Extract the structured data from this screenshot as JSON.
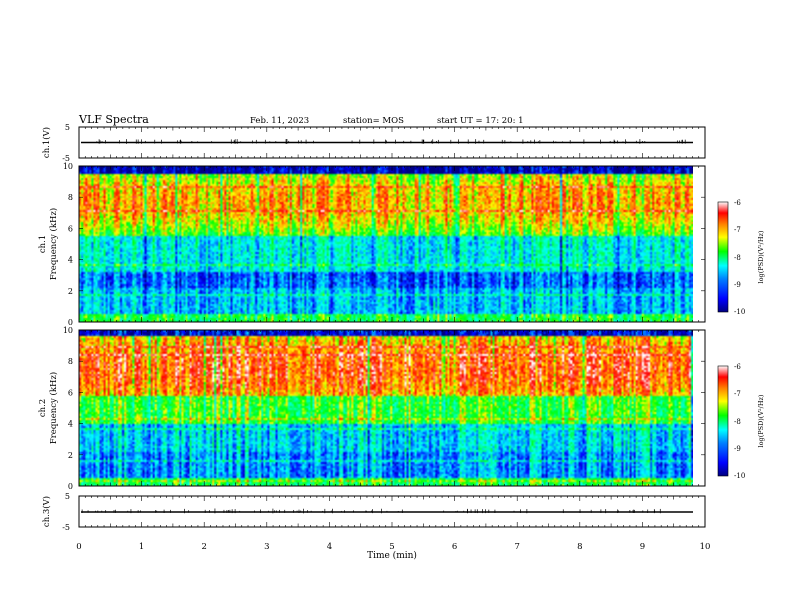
{
  "header": {
    "title": "VLF Spectra",
    "date": "Feb. 11, 2023",
    "station": "station= MOS",
    "start": "start  UT  =   17: 20: 1"
  },
  "chart_data": [
    {
      "type": "line",
      "panel": "ch1-waveform",
      "ylabel": "ch.1(V)",
      "ylim": [
        -5,
        5
      ],
      "y_ticks": [
        "5",
        "-5"
      ],
      "xlim": [
        0,
        10
      ]
    },
    {
      "type": "heatmap",
      "panel": "ch1-spectrogram",
      "ylabel": "ch.1\nFrequency (kHz)",
      "ylim": [
        0,
        10
      ],
      "y_ticks": [
        "0",
        "2",
        "4",
        "6",
        "8",
        "10"
      ],
      "xlim": [
        0,
        10
      ],
      "colorbar": {
        "label": "log(PSD)(V²/Hz)",
        "range": [
          -10,
          -6
        ],
        "ticks": [
          "-6",
          "-7",
          "-8",
          "-9",
          "-10"
        ]
      }
    },
    {
      "type": "heatmap",
      "panel": "ch2-spectrogram",
      "ylabel": "ch.2\nFrequency (kHz)",
      "ylim": [
        0,
        10
      ],
      "y_ticks": [
        "0",
        "2",
        "4",
        "6",
        "8",
        "10"
      ],
      "xlim": [
        0,
        10
      ],
      "colorbar": {
        "label": "log(PSD)(V²/Hz)",
        "range": [
          -10,
          -6
        ],
        "ticks": [
          "-6",
          "-7",
          "-8",
          "-9",
          "-10"
        ]
      }
    },
    {
      "type": "line",
      "panel": "ch3-waveform",
      "ylabel": "ch.3(V)",
      "ylim": [
        -5,
        5
      ],
      "y_ticks": [
        "5",
        "-5"
      ],
      "xlim": [
        0,
        10
      ],
      "xlabel": "Time  (min)",
      "x_ticks": [
        "0",
        "1",
        "2",
        "3",
        "4",
        "5",
        "6",
        "7",
        "8",
        "9",
        "10"
      ]
    }
  ],
  "colors": {
    "colormap": [
      "#000080",
      "#0000ff",
      "#0080ff",
      "#00ffff",
      "#00ff80",
      "#00ff00",
      "#ffff00",
      "#ff8000",
      "#ff0000",
      "#ffffff"
    ]
  }
}
